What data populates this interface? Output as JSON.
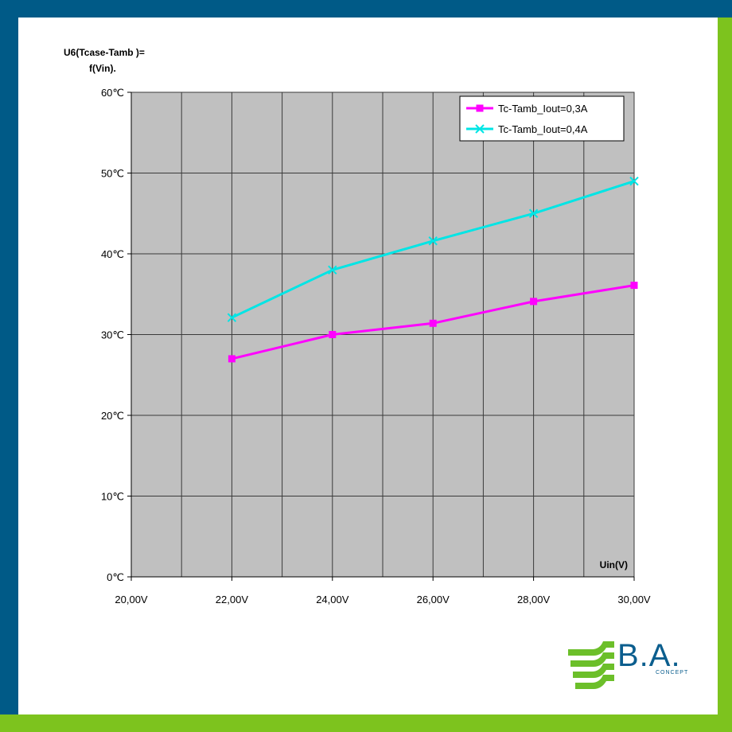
{
  "colors": {
    "frame_blue": "#005a87",
    "frame_green": "#7dc31e",
    "plot_bg": "#c0c0c0",
    "grid": "#3a3a3a",
    "series_1": "#ff00ff",
    "series_2": "#00e5e5",
    "logo_blue": "#0b5e8e",
    "logo_green": "#6cbf2a"
  },
  "title": {
    "line1": "U6(Tcase-Tamb )=",
    "line2": "f(Vin)."
  },
  "logo": {
    "text": "B.A.",
    "sub": "CONCEPT",
    "icon": "ba-concept-logo-icon"
  },
  "chart_data": {
    "type": "line",
    "title": "U6(Tcase-Tamb )= f(Vin).",
    "xlabel": "Uin(V)",
    "ylabel": "",
    "x": [
      22,
      24,
      26,
      28,
      30
    ],
    "xlim": [
      20,
      30
    ],
    "ylim": [
      0,
      60
    ],
    "x_ticks": [
      20,
      22,
      24,
      26,
      28,
      30
    ],
    "x_tick_labels": [
      "20,00V",
      "22,00V",
      "24,00V",
      "26,00V",
      "28,00V",
      "30,00V"
    ],
    "y_ticks": [
      0,
      10,
      20,
      30,
      40,
      50,
      60
    ],
    "y_tick_labels": [
      "0℃",
      "10℃",
      "20℃",
      "30℃",
      "40℃",
      "50℃",
      "60℃"
    ],
    "grid": true,
    "legend_position": "top-right",
    "series": [
      {
        "name": "Tc-Tamb_Iout=0,3A",
        "values": [
          27,
          30,
          31.4,
          34.1,
          36.1
        ],
        "marker": "square",
        "color": "#ff00ff"
      },
      {
        "name": "Tc-Tamb_Iout=0,4A",
        "values": [
          32.1,
          38,
          41.6,
          45,
          49
        ],
        "marker": "x",
        "color": "#00e5e5"
      }
    ]
  }
}
